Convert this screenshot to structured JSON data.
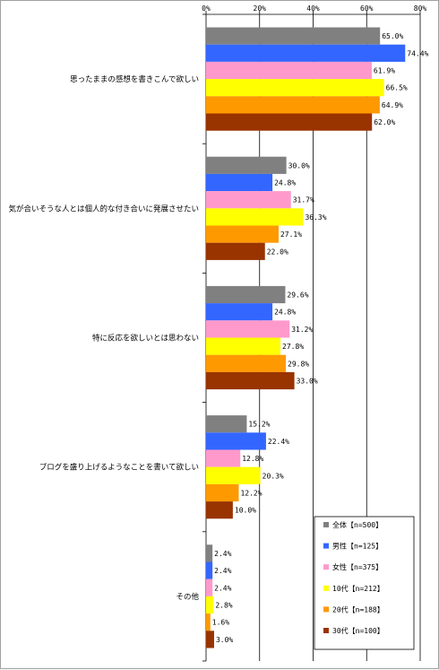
{
  "chart_data": {
    "type": "bar",
    "orientation": "horizontal",
    "title": "",
    "xlabel": "",
    "ylabel": "",
    "xlim": [
      0,
      80
    ],
    "x_ticks": [
      "0%",
      "20%",
      "40%",
      "60%",
      "80%"
    ],
    "x_axis_position": "top",
    "grid": true,
    "legend_position": "bottom-right",
    "categories": [
      "思ったままの感想を書きこんで欲しい",
      "気が合いそうな人とは個人的な付き合いに発展させたい",
      "特に反応を欲しいとは思わない",
      "ブログを盛り上げるようなことを書いて欲しい",
      "その他"
    ],
    "series": [
      {
        "name": "全体【n=500】",
        "color": "#808080",
        "values": [
          65.0,
          30.0,
          29.6,
          15.2,
          2.4
        ],
        "labels": [
          "65.0%",
          "30.0%",
          "29.6%",
          "15.2%",
          "2.4%"
        ]
      },
      {
        "name": "男性【n=125】",
        "color": "#3366ff",
        "values": [
          74.4,
          24.8,
          24.8,
          22.4,
          2.4
        ],
        "labels": [
          "74.4%",
          "24.8%",
          "24.8%",
          "22.4%",
          "2.4%"
        ]
      },
      {
        "name": "女性【n=375】",
        "color": "#ff99cc",
        "values": [
          61.9,
          31.7,
          31.2,
          12.8,
          2.4
        ],
        "labels": [
          "61.9%",
          "31.7%",
          "31.2%",
          "12.8%",
          "2.4%"
        ]
      },
      {
        "name": "10代【n=212】",
        "color": "#ffff00",
        "values": [
          66.5,
          36.3,
          27.8,
          20.3,
          2.8
        ],
        "labels": [
          "66.5%",
          "36.3%",
          "27.8%",
          "20.3%",
          "2.8%"
        ]
      },
      {
        "name": "20代【n=188】",
        "color": "#ff9900",
        "values": [
          64.9,
          27.1,
          29.8,
          12.2,
          1.6
        ],
        "labels": [
          "64.9%",
          "27.1%",
          "29.8%",
          "12.2%",
          "1.6%"
        ]
      },
      {
        "name": "30代【n=100】",
        "color": "#993300",
        "values": [
          62.0,
          22.0,
          33.0,
          10.0,
          3.0
        ],
        "labels": [
          "62.0%",
          "22.0%",
          "33.0%",
          "10.0%",
          "3.0%"
        ]
      }
    ]
  }
}
